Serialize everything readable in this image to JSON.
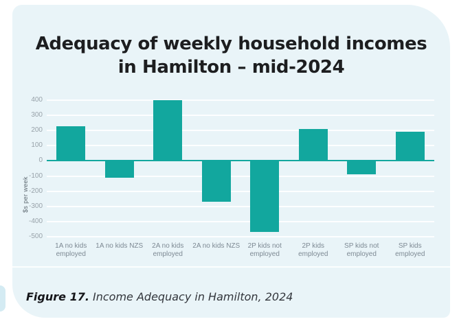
{
  "title": {
    "line1": "Adequacy of weekly household incomes",
    "line2": "in Hamilton – mid-2024"
  },
  "caption": {
    "label": "Figure 17.",
    "text": " Income Adequacy in Hamilton, 2024"
  },
  "colors": {
    "bar": "#12a79e",
    "zero_line": "#12a79e",
    "card_background": "#e9f4f8"
  },
  "chart_data": {
    "type": "bar",
    "ylabel": "$s per week",
    "categories": [
      "1A no kids employed",
      "1A no kids NZS",
      "2A no kids employed",
      "2A no kids NZS",
      "2P kids not employed",
      "2P kids employed",
      "SP kids not employed",
      "SP kids employed"
    ],
    "category_lines": [
      [
        "1A no kids",
        "employed"
      ],
      [
        "1A no kids NZS"
      ],
      [
        "2A no kids",
        "employed"
      ],
      [
        "2A no kids NZS"
      ],
      [
        "2P kids not",
        "employed"
      ],
      [
        "2P kids",
        "employed"
      ],
      [
        "SP kids not",
        "employed"
      ],
      [
        "SP kids",
        "employed"
      ]
    ],
    "values": [
      230,
      -110,
      400,
      -270,
      -470,
      210,
      -90,
      190
    ],
    "ylim": [
      -500,
      400
    ],
    "yticks": [
      400,
      300,
      200,
      100,
      0,
      -100,
      -200,
      -300,
      -400,
      -500
    ],
    "grid": true,
    "legend": "none"
  }
}
